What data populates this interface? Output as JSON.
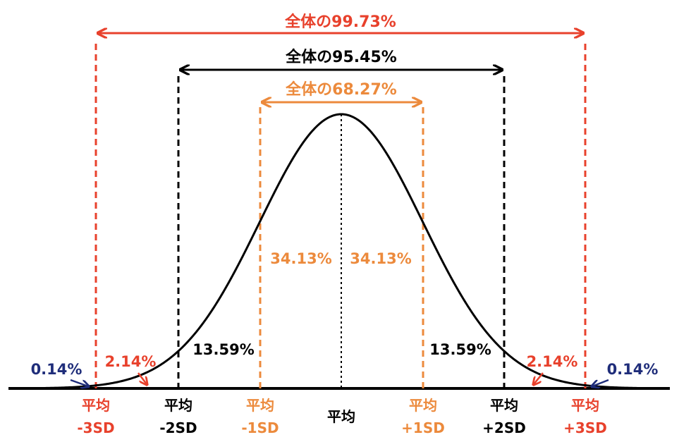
{
  "colors": {
    "red": "#e8412c",
    "orange": "#ec8a3c",
    "black": "#000000",
    "navy": "#1f2d7a"
  },
  "ranges": {
    "sd3": "全体の99.73%",
    "sd2": "全体の95.45%",
    "sd1": "全体の68.27%"
  },
  "areas": {
    "center_left": "34.13%",
    "center_right": "34.13%",
    "mid_left": "13.59%",
    "mid_right": "13.59%",
    "outer_left": "2.14%",
    "outer_right": "2.14%",
    "tail_left": "0.14%",
    "tail_right": "0.14%"
  },
  "axis": {
    "mean": "平均",
    "minus3_top": "平均",
    "minus3_bottom": "-3SD",
    "minus2_top": "平均",
    "minus2_bottom": "-2SD",
    "minus1_top": "平均",
    "minus1_bottom": "-1SD",
    "plus1_top": "平均",
    "plus1_bottom": "+1SD",
    "plus2_top": "平均",
    "plus2_bottom": "+2SD",
    "plus3_top": "平均",
    "plus3_bottom": "+3SD"
  }
}
